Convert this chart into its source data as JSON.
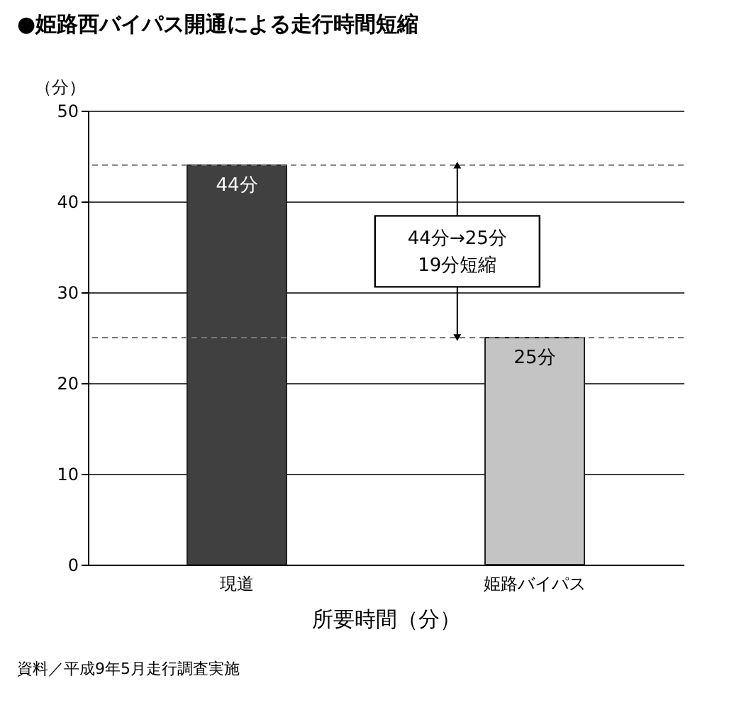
{
  "chart_data": {
    "type": "bar",
    "title": "●姫路西バイパス開通による走行時間短縮",
    "ylabel": "（分）",
    "xlabel": "所要時間（分）",
    "categories": [
      "現道",
      "姫路バイパス"
    ],
    "values": [
      44,
      25
    ],
    "colors": [
      "#404040",
      "#c4c4c4"
    ],
    "value_labels": [
      "44分",
      "25分"
    ],
    "ylim": [
      0,
      50
    ],
    "yticks": [
      0,
      10,
      20,
      30,
      40,
      50
    ],
    "grid": "y",
    "ref_lines": [
      {
        "axis": "y",
        "value": 44,
        "line_style": "dashed"
      },
      {
        "axis": "y",
        "value": 25,
        "line_style": "dashed"
      }
    ],
    "annotations": [
      "44分→25分\n19分短縮",
      "資料／平成9年5月走行調査実施"
    ]
  }
}
